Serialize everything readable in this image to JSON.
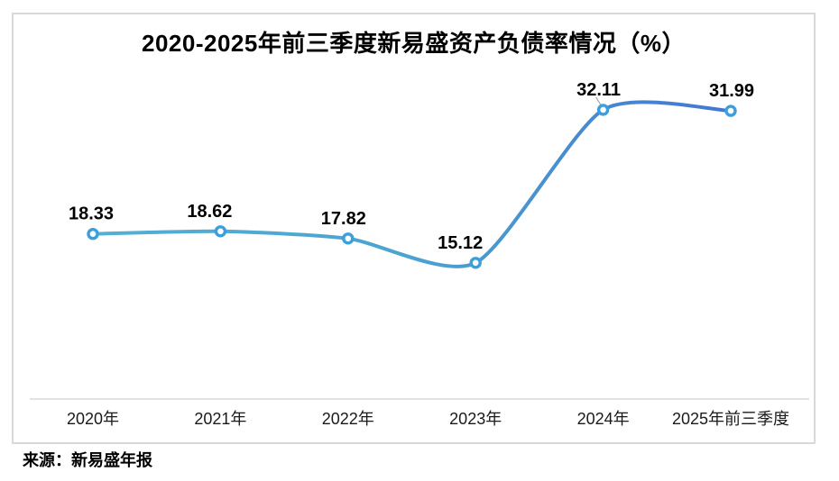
{
  "chart_data": {
    "type": "line",
    "title": "2020-2025年前三季度新易盛资产负债率情况（%）",
    "categories": [
      "2020年",
      "2021年",
      "2022年",
      "2023年",
      "2024年",
      "2025年前三季度"
    ],
    "series": [
      {
        "name": "资产负债率",
        "values": [
          18.33,
          18.62,
          17.82,
          15.12,
          32.11,
          31.99
        ]
      }
    ],
    "data_label_texts": [
      "18.33",
      "18.62",
      "17.82",
      "15.12",
      "32.11",
      "31.99"
    ],
    "xlabel": "",
    "ylabel": "",
    "ylim": [
      0,
      42
    ],
    "grid": false,
    "legend": "none",
    "smooth": true,
    "leader_line_point_index": 4,
    "colors": {
      "line_gradient_start": "#55afd3",
      "line_gradient_mid": "#4ba3cf",
      "line_gradient_end": "#4377d2",
      "marker_ring": "#3b9fdc",
      "marker_fill": "#ffffff",
      "axis_line": "#d9d9d9",
      "frame_border": "#d9d9d9",
      "label_text": "#000000",
      "leader_line": "#a6a6a6"
    },
    "label_offsets_x": [
      -2,
      -12,
      -5,
      -17,
      -5,
      1
    ]
  },
  "source": {
    "text": "来源：新易盛年报"
  }
}
